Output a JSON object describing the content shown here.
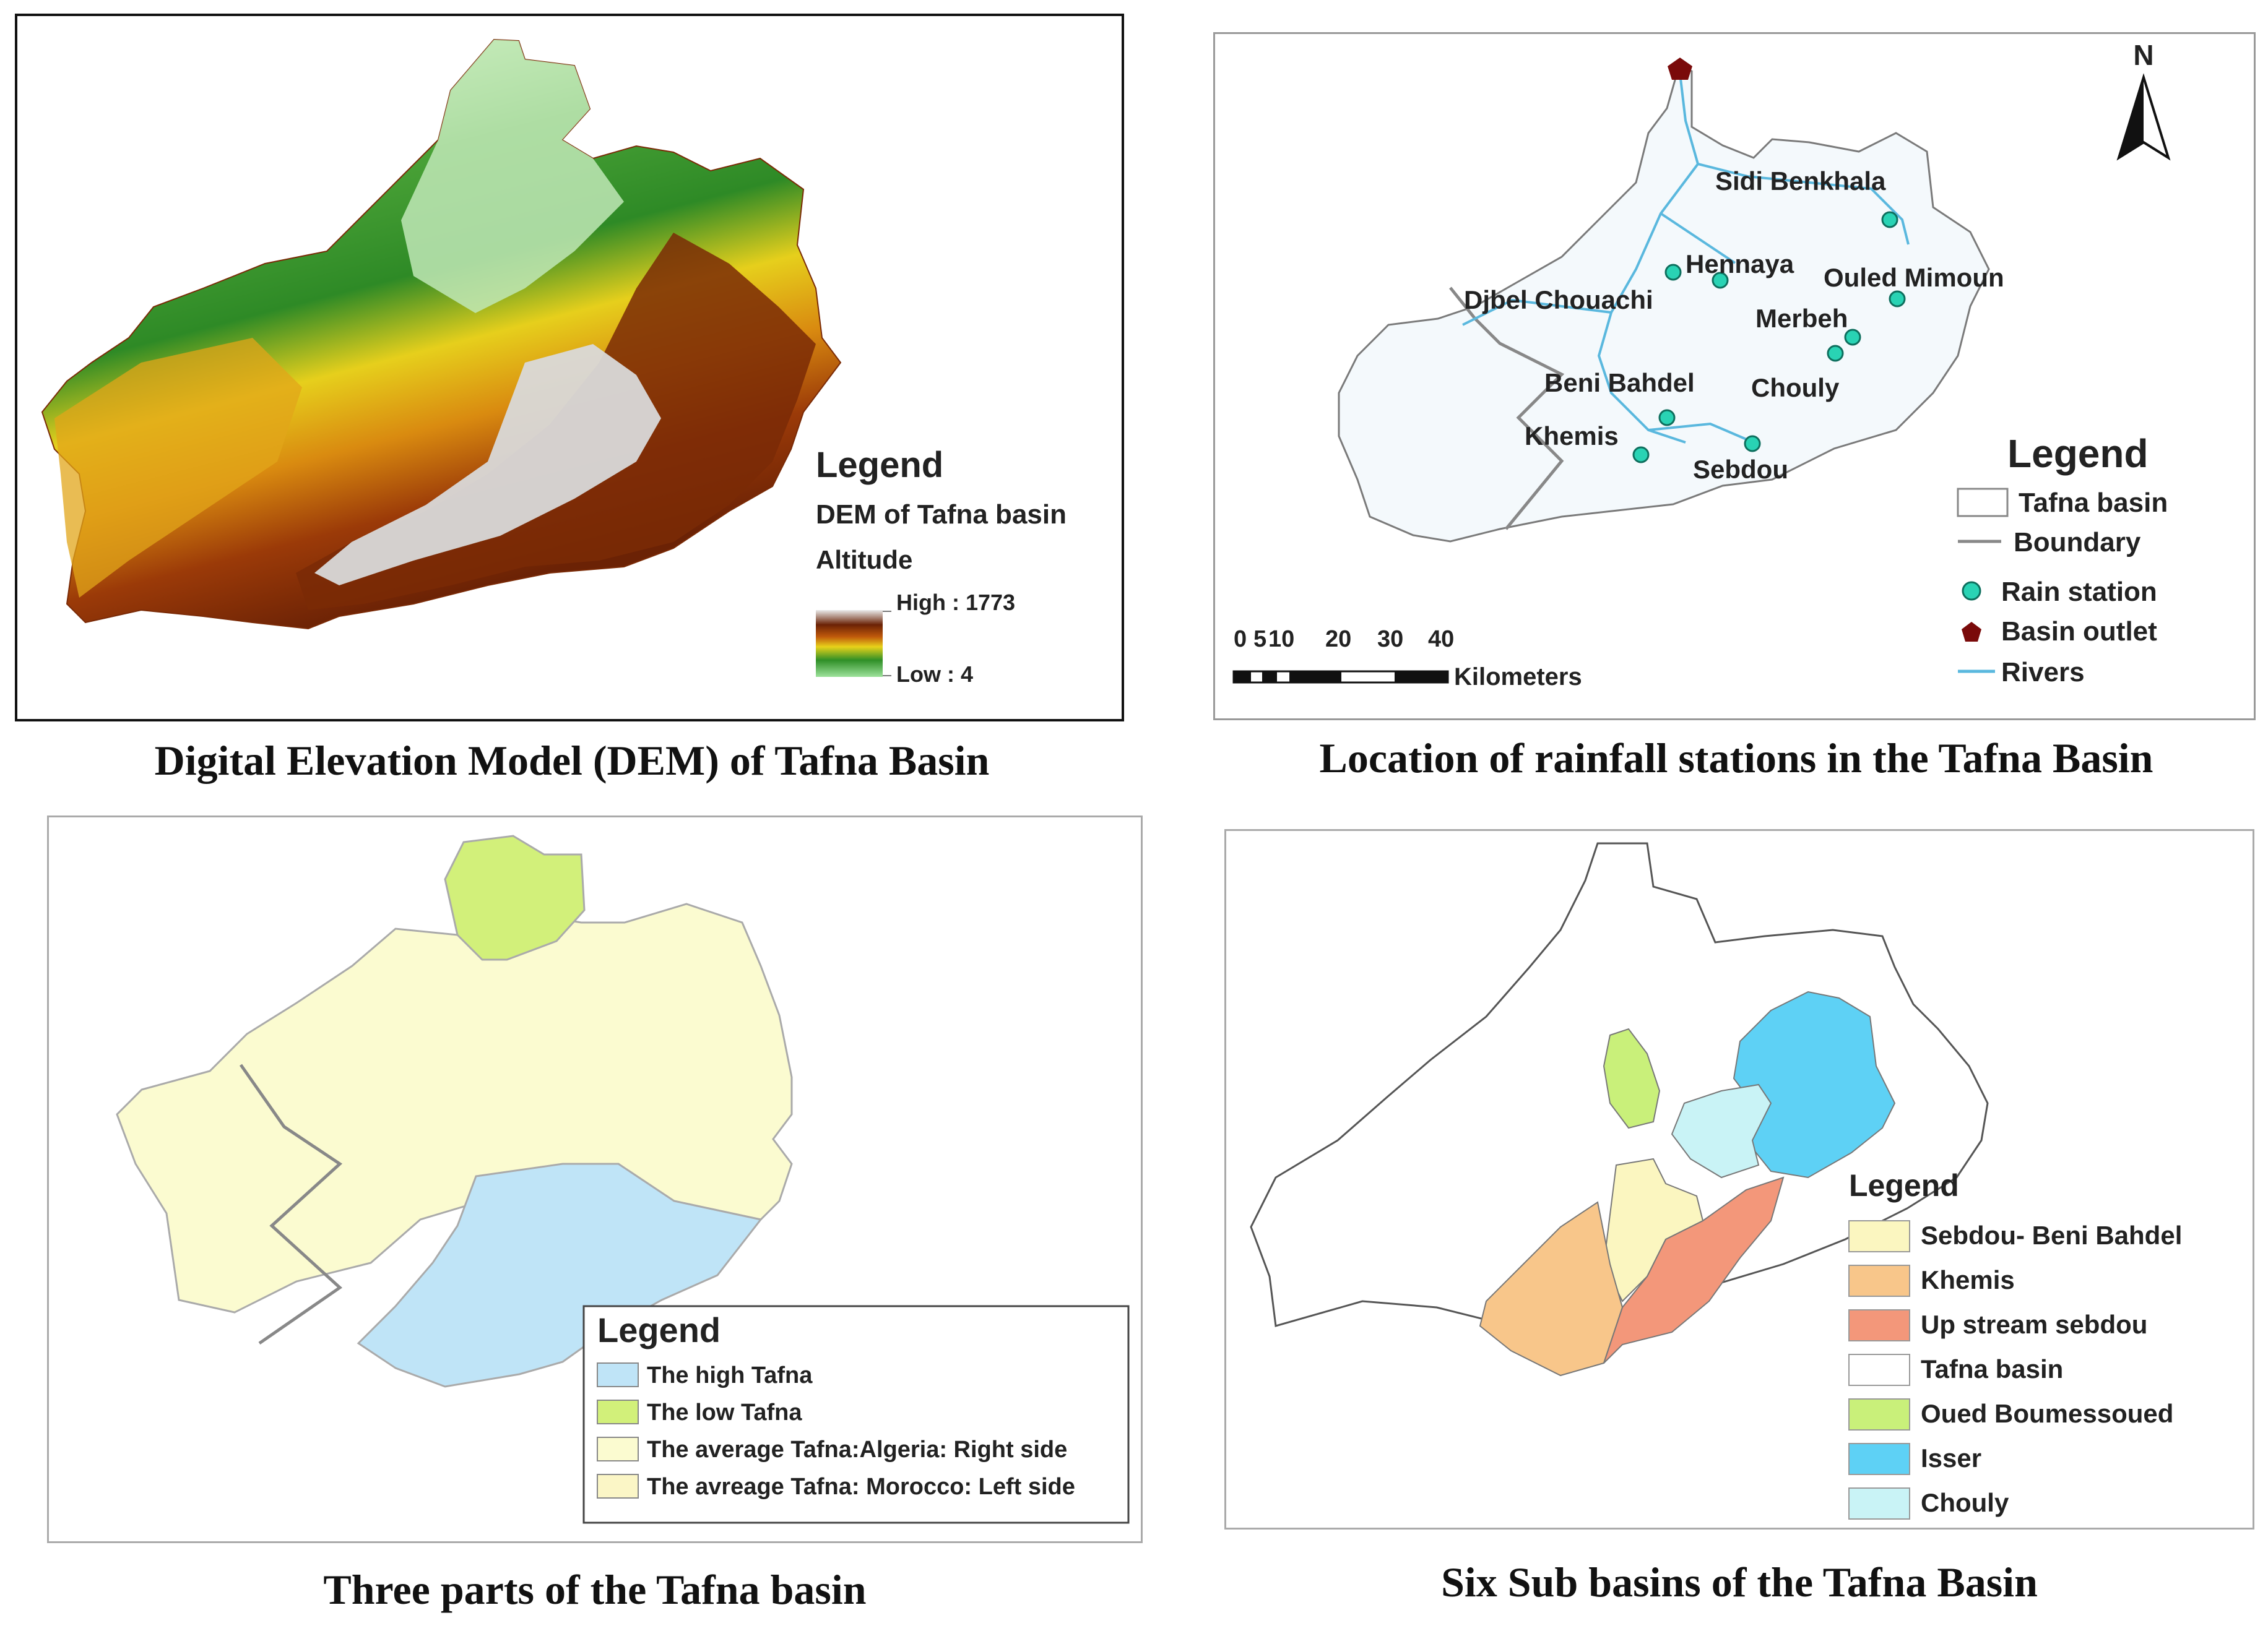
{
  "captions": {
    "dem": "Digital Elevation Model (DEM) of Tafna Basin",
    "stations": "Location of rainfall stations in the Tafna Basin",
    "parts": "Three parts of the Tafna basin",
    "subbasins": "Six Sub basins of the Tafna Basin"
  },
  "dem": {
    "legend_title": "Legend",
    "layer_name": "DEM of Tafna basin",
    "field": "Altitude",
    "high_label": "High : 1773",
    "low_label": "Low : 4",
    "ramp_colors": [
      "#9de29b",
      "#3c9a2c",
      "#e8d21a",
      "#c05a0b",
      "#7a2a06",
      "#e4e4e4"
    ]
  },
  "stations_map": {
    "north_label": "N",
    "stations": [
      {
        "name": "Sidi Benkhala"
      },
      {
        "name": "Hennaya"
      },
      {
        "name": "Ouled Mimoun"
      },
      {
        "name": "Djbel Chouachi"
      },
      {
        "name": "Merbeh"
      },
      {
        "name": "Beni Bahdel"
      },
      {
        "name": "Chouly"
      },
      {
        "name": "Khemis"
      },
      {
        "name": "Sebdou"
      }
    ],
    "scale": {
      "ticks": [
        "0",
        "5",
        "10",
        "20",
        "30",
        "40"
      ],
      "unit": "Kilometers"
    },
    "legend": {
      "title": "Legend",
      "items": [
        "Tafna basin",
        "Boundary",
        "Rain station",
        "Basin outlet",
        "Rivers"
      ]
    },
    "colors": {
      "station": "#29d3b4",
      "outlet": "#7a0a0a",
      "river": "#5ab8de",
      "boundary": "#888888"
    }
  },
  "parts_map": {
    "legend": {
      "title": "Legend",
      "items": [
        {
          "label": "The high Tafna",
          "color": "#bfe4f7"
        },
        {
          "label": "The low Tafna",
          "color": "#d2f07a"
        },
        {
          "label": "The average Tafna:Algeria: Right side",
          "color": "#fbfbd0"
        },
        {
          "label": "The avreage Tafna: Morocco: Left side",
          "color": "#fbf6c6"
        }
      ]
    }
  },
  "subbasins_map": {
    "legend": {
      "title": "Legend",
      "items": [
        {
          "label": "Sebdou- Beni Bahdel",
          "color": "#fbf6c0"
        },
        {
          "label": "Khemis",
          "color": "#f8c68a"
        },
        {
          "label": "Up stream sebdou",
          "color": "#f3977a"
        },
        {
          "label": "Tafna basin",
          "color": "#ffffff"
        },
        {
          "label": "Oued Boumessoued",
          "color": "#c9f07a"
        },
        {
          "label": "Isser",
          "color": "#5ed1f5"
        },
        {
          "label": "Chouly",
          "color": "#c9f3f6"
        }
      ]
    }
  }
}
